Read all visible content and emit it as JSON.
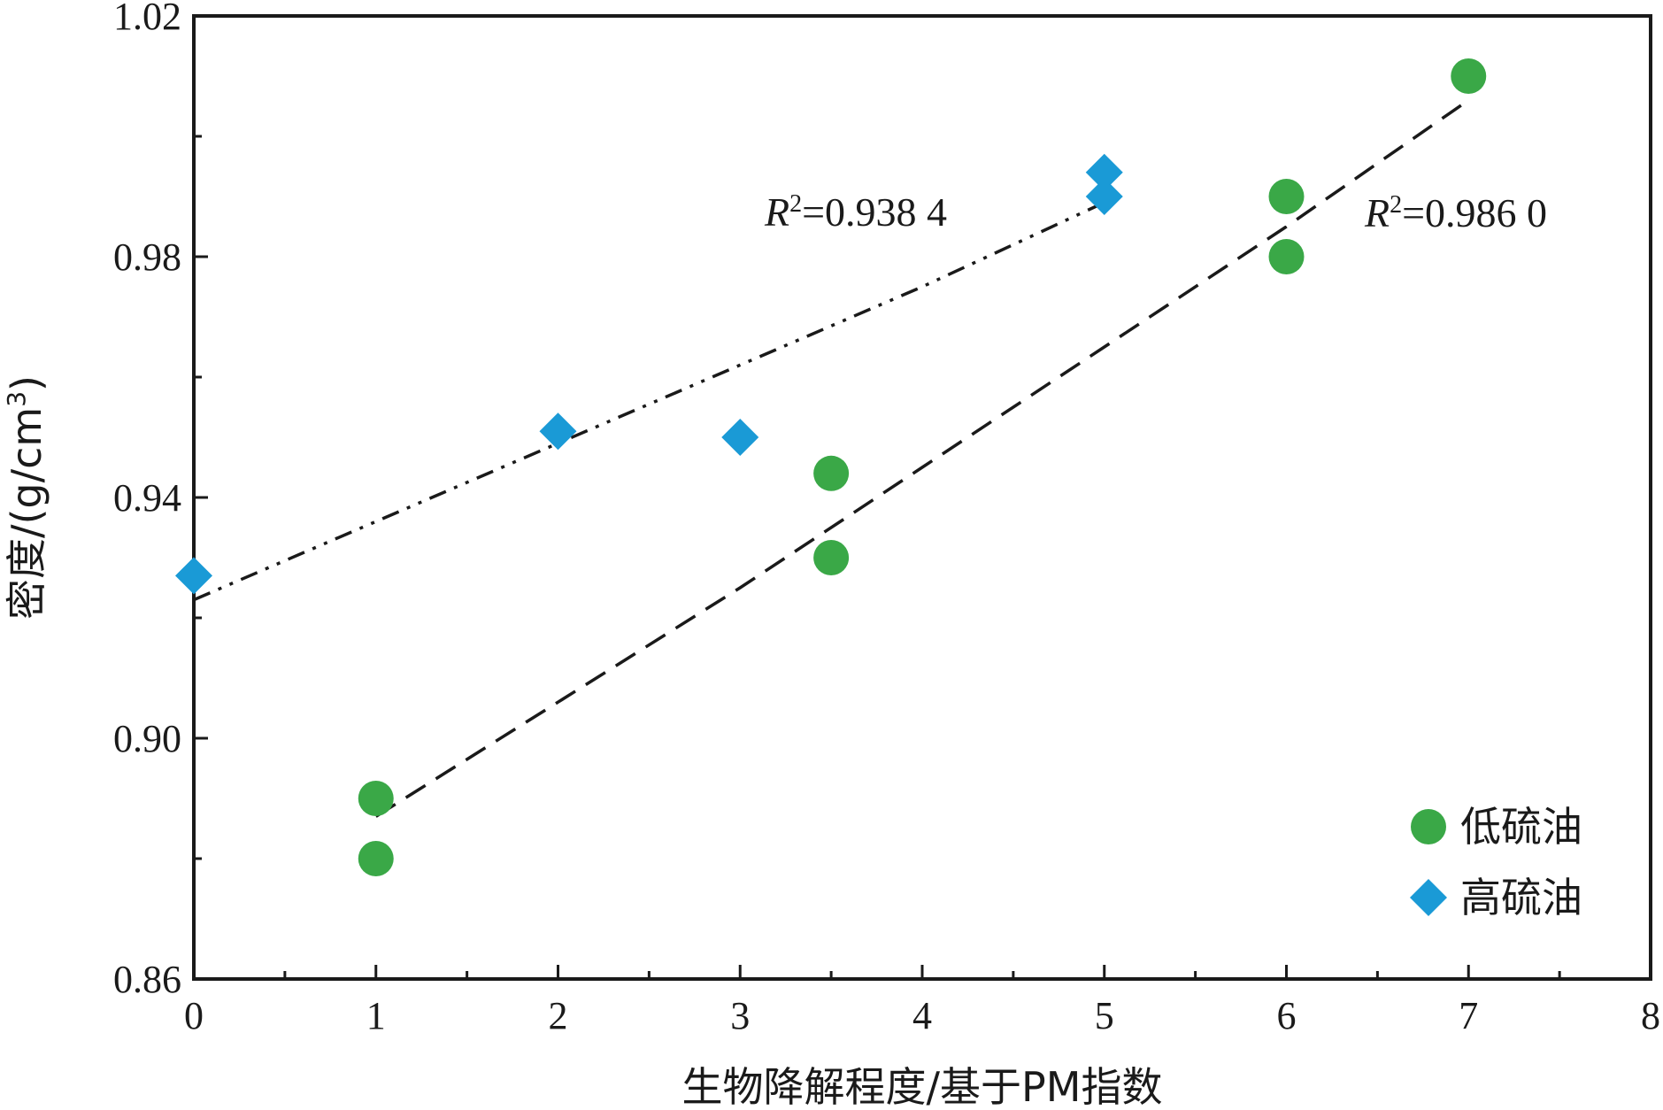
{
  "chart_data": {
    "type": "scatter",
    "xlabel": "生物降解程度/基于PM指数",
    "ylabel": "密度/(g/cm³)",
    "ylabel_main": "密度/(g/cm",
    "ylabel_sup": "3",
    "ylabel_tail": ")",
    "xlim": [
      0,
      8
    ],
    "ylim": [
      0.86,
      1.02
    ],
    "x_ticks": [
      0,
      1,
      2,
      3,
      4,
      5,
      6,
      7,
      8
    ],
    "x_tick_labels": [
      "0",
      "1",
      "2",
      "3",
      "4",
      "5",
      "6",
      "7",
      "8"
    ],
    "x_minor_ticks": [
      0.5,
      1.5,
      2.5,
      3.5,
      4.5,
      5.5,
      6.5,
      7.5
    ],
    "y_ticks": [
      0.86,
      0.9,
      0.94,
      0.98,
      1.02
    ],
    "y_tick_labels": [
      "0.86",
      "0.90",
      "0.94",
      "0.98",
      "1.02"
    ],
    "y_minor_ticks": [
      0.88,
      0.92,
      0.96,
      1.0
    ],
    "grid": false,
    "legend_position": "bottom-right",
    "series": [
      {
        "name": "低硫油",
        "marker": "circle",
        "color": "#3aa847",
        "points": [
          {
            "x": 1,
            "y": 0.89
          },
          {
            "x": 1,
            "y": 0.88
          },
          {
            "x": 3.5,
            "y": 0.944
          },
          {
            "x": 3.5,
            "y": 0.93
          },
          {
            "x": 6,
            "y": 0.99
          },
          {
            "x": 6,
            "y": 0.98
          },
          {
            "x": 7,
            "y": 1.01
          }
        ],
        "fit": {
          "style": "dashed",
          "points": [
            {
              "x": 1,
              "y": 0.887
            },
            {
              "x": 2,
              "y": 0.906
            },
            {
              "x": 3,
              "y": 0.925
            },
            {
              "x": 4,
              "y": 0.945
            },
            {
              "x": 5,
              "y": 0.965
            },
            {
              "x": 6,
              "y": 0.985
            },
            {
              "x": 7,
              "y": 1.006
            }
          ],
          "r2_prefix": "R",
          "r2_sup": "2",
          "r2_value": "=0.986 0"
        }
      },
      {
        "name": "高硫油",
        "marker": "diamond",
        "color": "#1a9ad6",
        "points": [
          {
            "x": 0,
            "y": 0.927
          },
          {
            "x": 2,
            "y": 0.951
          },
          {
            "x": 3,
            "y": 0.95
          },
          {
            "x": 5,
            "y": 0.994
          },
          {
            "x": 5,
            "y": 0.99
          }
        ],
        "fit": {
          "style": "dash-dot-dot",
          "points": [
            {
              "x": 0,
              "y": 0.923
            },
            {
              "x": 1,
              "y": 0.936
            },
            {
              "x": 2,
              "y": 0.949
            },
            {
              "x": 3,
              "y": 0.962
            },
            {
              "x": 4,
              "y": 0.975
            },
            {
              "x": 5,
              "y": 0.989
            }
          ],
          "r2_prefix": "R",
          "r2_sup": "2",
          "r2_value": "=0.938 4"
        }
      }
    ]
  }
}
